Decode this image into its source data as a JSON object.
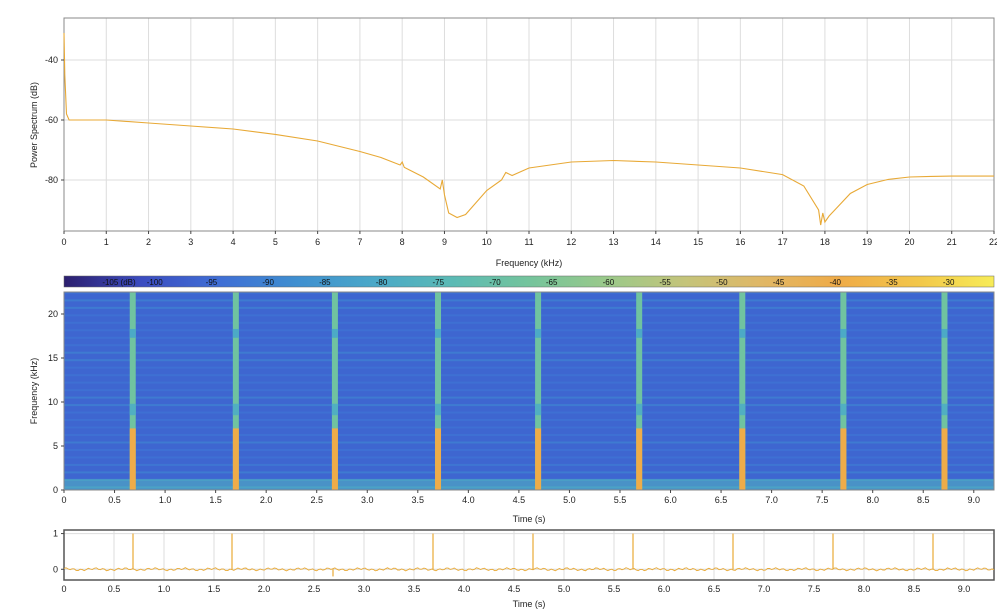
{
  "colors": {
    "trace": "#e8a936",
    "plot_border": "#888888",
    "grid": "#dddddd",
    "wave_border": "#555555"
  },
  "chart_data": [
    {
      "id": "power-spectrum",
      "type": "line",
      "xlabel": "Frequency (kHz)",
      "ylabel": "Power Spectrum (dB)",
      "xlim": [
        0,
        22
      ],
      "ylim": [
        -97,
        -26
      ],
      "xticks": [
        "0",
        "1",
        "2",
        "3",
        "4",
        "5",
        "6",
        "7",
        "8",
        "9",
        "10",
        "11",
        "12",
        "13",
        "14",
        "15",
        "16",
        "17",
        "18",
        "19",
        "20",
        "21",
        "22"
      ],
      "yticks": [
        "-40",
        "-60",
        "-80"
      ],
      "grid": true,
      "series": [
        {
          "x": [
            0,
            0.02,
            0.06,
            0.12,
            0.3,
            1,
            2,
            3,
            4,
            5,
            6,
            7,
            7.5,
            7.95,
            8.0,
            8.05,
            8.5,
            8.9,
            8.95,
            9.0,
            9.05,
            9.1,
            9.3,
            9.5,
            10,
            10.35,
            10.45,
            10.6,
            11,
            12,
            13,
            14,
            15,
            16,
            17,
            17.5,
            17.85,
            17.9,
            17.95,
            18.0,
            18.1,
            18.3,
            18.6,
            19,
            19.5,
            20,
            20.5,
            21,
            22
          ],
          "y": [
            -31,
            -45,
            -58,
            -60,
            -60,
            -60,
            -61,
            -62,
            -63,
            -64.8,
            -67,
            -70.5,
            -72.5,
            -75,
            -74,
            -75.8,
            -79,
            -83,
            -80,
            -85,
            -88,
            -91,
            -92.5,
            -91.5,
            -83.5,
            -80,
            -77.5,
            -78.5,
            -76,
            -74,
            -73.5,
            -74,
            -75,
            -76,
            -78.2,
            -82,
            -90,
            -95,
            -91,
            -94,
            -92,
            -89,
            -84.5,
            -81.5,
            -79.8,
            -79,
            -78.8,
            -78.7,
            -78.7
          ]
        }
      ]
    },
    {
      "id": "spectrogram",
      "type": "heatmap",
      "xlabel": "Time (s)",
      "ylabel": "Frequency (kHz)",
      "xlim": [
        0,
        9.2
      ],
      "ylim": [
        0,
        22.5
      ],
      "xticks": [
        "0",
        "0.5",
        "1.0",
        "1.5",
        "2.0",
        "2.5",
        "3.0",
        "3.5",
        "4.0",
        "4.5",
        "5.0",
        "5.5",
        "6.0",
        "6.5",
        "7.0",
        "7.5",
        "8.0",
        "8.5",
        "9.0"
      ],
      "yticks": [
        "0",
        "5",
        "10",
        "15",
        "20"
      ],
      "colorbar": {
        "unit_label": "-105 (dB)",
        "tick_labels": [
          "-100",
          "-95",
          "-90",
          "-85",
          "-80",
          "-75",
          "-70",
          "-65",
          "-60",
          "-55",
          "-50",
          "-45",
          "-40",
          "-35",
          "-30"
        ],
        "range": [
          -108,
          -26
        ],
        "colormap": [
          "#2c1f6e",
          "#3b4cc0",
          "#3f6ed5",
          "#3f8fd0",
          "#4aa8c8",
          "#5bbab5",
          "#74c49c",
          "#9ac98a",
          "#c4c47a",
          "#e0b766",
          "#efab48",
          "#f2c64a",
          "#f7ec58"
        ]
      },
      "background_level_db": -96,
      "impulse_times": [
        0.68,
        1.7,
        2.68,
        3.7,
        4.69,
        5.69,
        6.71,
        7.71,
        8.71
      ],
      "impulse_level_db": -40
    },
    {
      "id": "waveform",
      "type": "line",
      "xlabel": "Time (s)",
      "ylabel": "",
      "xlim": [
        0,
        9.3
      ],
      "ylim": [
        -0.3,
        1.1
      ],
      "xticks": [
        "0",
        "0.5",
        "1.0",
        "1.5",
        "2.0",
        "2.5",
        "3.0",
        "3.5",
        "4.0",
        "4.5",
        "5.0",
        "5.5",
        "6.0",
        "6.5",
        "7.0",
        "7.5",
        "8.0",
        "8.5",
        "9.0"
      ],
      "yticks": [
        "0",
        "1"
      ],
      "baseline": 0,
      "impulses": [
        {
          "t": 0.69,
          "peak": 1.0
        },
        {
          "t": 1.68,
          "peak": 1.0
        },
        {
          "t": 2.69,
          "peak": -0.2
        },
        {
          "t": 3.69,
          "peak": 1.0
        },
        {
          "t": 4.69,
          "peak": 1.0
        },
        {
          "t": 5.69,
          "peak": 1.0
        },
        {
          "t": 6.69,
          "peak": 1.0
        },
        {
          "t": 7.69,
          "peak": 1.0
        },
        {
          "t": 8.69,
          "peak": 1.0
        }
      ]
    }
  ]
}
